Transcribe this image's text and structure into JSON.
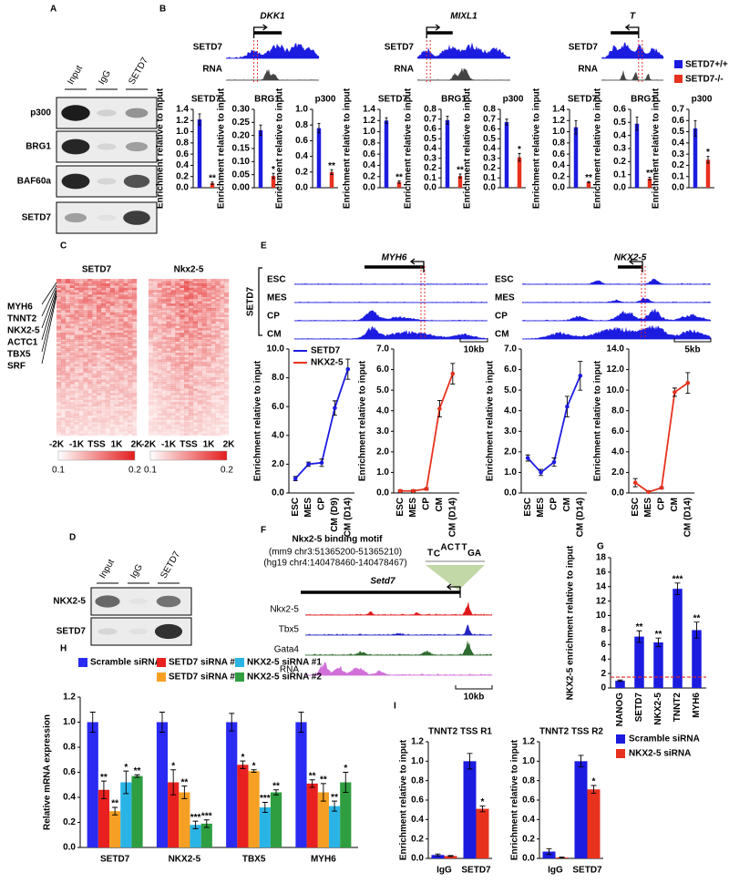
{
  "panel_labels": [
    "A",
    "B",
    "C",
    "D",
    "E",
    "F",
    "G",
    "H",
    "I"
  ],
  "panel_a": {
    "lanes": [
      "Input",
      "IgG",
      "SETD7"
    ],
    "rows": [
      "p300",
      "BRG1",
      "BAF60a",
      "SETD7"
    ]
  },
  "panel_b": {
    "genes": [
      "DKK1",
      "MIXL1",
      "T"
    ],
    "track_labels": [
      "SETD7",
      "RNA"
    ],
    "legend": [
      {
        "name": "SETD7+/+",
        "color": "#1c1ce0"
      },
      {
        "name": "SETD7-/-",
        "color": "#e8321e"
      }
    ],
    "charts": [
      {
        "type": "bar",
        "title": "SETD7",
        "y_label": "Enrichment relative to input",
        "values": [
          1.22,
          0.08
        ],
        "errors": [
          0.1,
          0.02
        ],
        "significance": [
          null,
          "**"
        ],
        "ylim": [
          0,
          1.4
        ],
        "yticks": [
          {
            "value": 0,
            "label": "0.0"
          },
          0.2,
          0.4,
          0.6,
          0.8,
          {
            "value": 1,
            "label": "1.0"
          },
          1.2,
          1.4
        ]
      },
      {
        "type": "bar",
        "title": "BRG1",
        "y_label": "Enrichment relative to input",
        "values": [
          0.22,
          0.045
        ],
        "errors": [
          0.02,
          0.01
        ],
        "significance": [
          null,
          "*"
        ],
        "ylim": [
          0,
          0.3
        ],
        "yticks": [
          {
            "value": 0,
            "label": "0.00"
          },
          0.05,
          {
            "value": 0.1,
            "label": "0.10"
          },
          0.15,
          {
            "value": 0.2,
            "label": "0.20"
          },
          0.25,
          {
            "value": 0.3,
            "label": "0.30"
          }
        ]
      },
      {
        "type": "bar",
        "title": "p300",
        "y_label": "Enrichment relative to input",
        "values": [
          0.76,
          0.2
        ],
        "errors": [
          0.06,
          0.03
        ],
        "significance": [
          null,
          "**"
        ],
        "ylim": [
          0,
          1
        ],
        "yticks": [
          {
            "value": 0,
            "label": "0.0"
          },
          0.2,
          0.4,
          0.6,
          0.8,
          {
            "value": 1,
            "label": "1.0"
          }
        ]
      },
      {
        "type": "bar",
        "title": "SETD7",
        "y_label": "Enrichment relative to input",
        "values": [
          1.2,
          0.1
        ],
        "errors": [
          0.05,
          0.02
        ],
        "significance": [
          null,
          "**"
        ],
        "ylim": [
          0,
          1.4
        ],
        "yticks": [
          {
            "value": 0,
            "label": "0.0"
          },
          0.2,
          0.4,
          0.6,
          0.8,
          {
            "value": 1,
            "label": "1.0"
          },
          1.2,
          1.4
        ]
      },
      {
        "type": "bar",
        "title": "BRG1",
        "y_label": "Enrichment relative to input",
        "values": [
          0.69,
          0.12
        ],
        "errors": [
          0.04,
          0.02
        ],
        "significance": [
          null,
          "**"
        ],
        "ylim": [
          0,
          0.8
        ],
        "yticks": [
          {
            "value": 0,
            "label": "0.0"
          },
          0.1,
          0.2,
          0.3,
          0.4,
          0.5,
          0.6,
          0.7,
          0.8
        ]
      },
      {
        "type": "bar",
        "title": "p300",
        "y_label": "Enrichment relative to input",
        "values": [
          0.67,
          0.31
        ],
        "errors": [
          0.03,
          0.04
        ],
        "significance": [
          null,
          "*"
        ],
        "ylim": [
          0,
          0.8
        ],
        "yticks": [
          {
            "value": 0,
            "label": "0.0"
          },
          0.1,
          0.2,
          0.3,
          0.4,
          0.5,
          0.6,
          0.7,
          0.8
        ]
      },
      {
        "type": "bar",
        "title": "SETD7",
        "y_label": "Enrichment relative to input",
        "values": [
          1.08,
          0.1
        ],
        "errors": [
          0.12,
          0.01
        ],
        "significance": [
          null,
          "**"
        ],
        "ylim": [
          0,
          1.4
        ],
        "yticks": [
          {
            "value": 0,
            "label": "0.0"
          },
          0.2,
          0.4,
          0.6,
          0.8,
          {
            "value": 1,
            "label": "1.0"
          },
          1.2,
          1.4
        ]
      },
      {
        "type": "bar",
        "title": "BRG1",
        "y_label": "Enrichment relative to input",
        "values": [
          0.49,
          0.07
        ],
        "errors": [
          0.05,
          0.01
        ],
        "significance": [
          null,
          "**"
        ],
        "ylim": [
          0,
          0.6
        ],
        "yticks": [
          {
            "value": 0,
            "label": "0.0"
          },
          0.1,
          0.2,
          0.3,
          0.4,
          0.5,
          0.6
        ]
      },
      {
        "type": "bar",
        "title": "p300",
        "y_label": "Enrichment relative to input",
        "values": [
          0.53,
          0.25
        ],
        "errors": [
          0.07,
          0.03
        ],
        "significance": [
          null,
          "*"
        ],
        "ylim": [
          0,
          0.7
        ],
        "yticks": [
          {
            "value": 0,
            "label": "0.0"
          },
          0.1,
          0.2,
          0.3,
          0.4,
          0.5,
          0.6,
          0.7
        ]
      }
    ]
  },
  "panel_c": {
    "titles": [
      "SETD7",
      "Nkx2-5"
    ],
    "genes": [
      "MYH6",
      "TNNT2",
      "NKX2-5",
      "ACTC1",
      "TBX5",
      "SRF"
    ],
    "x_ticks": [
      "-2K",
      "-1K",
      "TSS",
      "1K",
      "2K"
    ],
    "colorbar": [
      0.1,
      0.2
    ]
  },
  "panel_d": {
    "lanes": [
      "Input",
      "IgG",
      "SETD7"
    ],
    "rows": [
      "NKX2-5",
      "SETD7"
    ]
  },
  "panel_e": {
    "genes": [
      "MYH6",
      "NKX2-5"
    ],
    "side_label": "SETD7",
    "stages": [
      "ESC",
      "MES",
      "CP",
      "CM"
    ],
    "scale_bars": [
      "10kb",
      "5kb"
    ],
    "legend": [
      {
        "name": "SETD7",
        "color": "#1c1ce0"
      },
      {
        "name": "NKX2-5",
        "color": "#e8321e"
      }
    ],
    "charts": [
      {
        "type": "line",
        "y_label": "Enrichment relative to input",
        "color": "#1c1ce0",
        "categories": [
          "ESC",
          "MES",
          "CP",
          "CM (D9)",
          "CM (D14)"
        ],
        "values": [
          1.0,
          2.0,
          2.1,
          5.9,
          8.6
        ],
        "errors": [
          0.15,
          0.15,
          0.25,
          0.5,
          0.7
        ],
        "ylim": [
          0,
          10
        ],
        "yticks": [
          {
            "value": 0,
            "label": "0.0"
          },
          {
            "value": 2,
            "label": "2.0"
          },
          {
            "value": 4,
            "label": "4.0"
          },
          {
            "value": 6,
            "label": "6.0"
          },
          {
            "value": 8,
            "label": "8.0"
          },
          {
            "value": 10,
            "label": "10.0"
          }
        ]
      },
      {
        "type": "line",
        "y_label": "Enrichment relative to input",
        "color": "#e8321e",
        "categories": [
          "ESC",
          "MES",
          "CP",
          "CM",
          "CM (D14)"
        ],
        "values": [
          0.1,
          0.1,
          0.2,
          4.1,
          5.8
        ],
        "errors": [
          0.05,
          0.05,
          0.05,
          0.4,
          0.5
        ],
        "ylim": [
          0,
          7
        ],
        "yticks": [
          {
            "value": 0,
            "label": "0.0"
          },
          {
            "value": 1,
            "label": "1.0"
          },
          {
            "value": 2,
            "label": "2.0"
          },
          {
            "value": 3,
            "label": "3.0"
          },
          {
            "value": 4,
            "label": "4.0"
          },
          {
            "value": 5,
            "label": "5.0"
          },
          {
            "value": 6,
            "label": "6.0"
          },
          {
            "value": 7,
            "label": "7.0"
          }
        ]
      },
      {
        "type": "line",
        "y_label": "Enrichment relative to input",
        "color": "#1c1ce0",
        "categories": [
          "ESC",
          "MES",
          "CP",
          "CM",
          "CM (D14)"
        ],
        "values": [
          1.7,
          1.0,
          1.5,
          4.2,
          5.7
        ],
        "errors": [
          0.15,
          0.15,
          0.2,
          0.5,
          0.7
        ],
        "ylim": [
          0,
          7
        ],
        "yticks": [
          {
            "value": 0,
            "label": "0.0"
          },
          {
            "value": 1,
            "label": "1.0"
          },
          {
            "value": 2,
            "label": "2.0"
          },
          {
            "value": 3,
            "label": "3.0"
          },
          {
            "value": 4,
            "label": "4.0"
          },
          {
            "value": 5,
            "label": "5.0"
          },
          {
            "value": 6,
            "label": "6.0"
          },
          {
            "value": 7,
            "label": "7.0"
          }
        ]
      },
      {
        "type": "line",
        "y_label": "Enrichment relative to input",
        "color": "#e8321e",
        "categories": [
          "ESC",
          "MES",
          "CP",
          "CM",
          "CM (D14)"
        ],
        "values": [
          1.0,
          0.1,
          0.5,
          9.8,
          10.7
        ],
        "errors": [
          0.4,
          0.1,
          0.1,
          0.4,
          1.0
        ],
        "ylim": [
          0,
          14
        ],
        "yticks": [
          {
            "value": 0,
            "label": "0.0"
          },
          {
            "value": 2,
            "label": "2.0"
          },
          {
            "value": 4,
            "label": "4.0"
          },
          {
            "value": 6,
            "label": "6.0"
          },
          {
            "value": 8,
            "label": "8.0"
          },
          {
            "value": 10,
            "label": "10.0"
          },
          {
            "value": 12,
            "label": "12.0"
          },
          {
            "value": 14,
            "label": "14.0"
          }
        ]
      }
    ]
  },
  "panel_f": {
    "motif_title": "Nkx2-5 binding motif",
    "coords": [
      "(mm9 chr3:51365200-51365210)",
      "(hg19 chr4:140478460-140478467)"
    ],
    "motif_letters": [
      "T",
      "C",
      "A",
      "C",
      "T",
      "T",
      "G",
      "A"
    ],
    "gene": "Setd7",
    "tracks": [
      {
        "name": "Nkx2-5",
        "color": "#e01818"
      },
      {
        "name": "Tbx5",
        "color": "#2323c0"
      },
      {
        "name": "Gata4",
        "color": "#2e6b2e"
      },
      {
        "name": "RNA",
        "color": "#d070d8"
      }
    ],
    "scale_bar": "10kb"
  },
  "panel_g": {
    "type": "bar",
    "y_label": "NKX2-5 enrichment relative to input",
    "color": "#1c1ce0",
    "categories": [
      "NANOG",
      "SETD7",
      "NKX2-5",
      "TNNT2",
      "MYH6"
    ],
    "values": [
      1.0,
      7.1,
      6.3,
      13.7,
      8.0
    ],
    "errors": [
      0.1,
      0.8,
      0.6,
      0.8,
      1.1
    ],
    "significance": [
      null,
      "**",
      "**",
      "***",
      "**"
    ],
    "reference_line": 1.5,
    "ylim": [
      0,
      18
    ],
    "yticks": [
      0,
      2,
      4,
      6,
      8,
      10,
      12,
      14,
      16,
      18
    ]
  },
  "panel_h": {
    "type": "bar",
    "y_label": "Relative mRNA expression",
    "categories": [
      "SETD7",
      "NKX2-5",
      "TBX5",
      "MYH6"
    ],
    "ylim": [
      0,
      1.2
    ],
    "yticks": [
      {
        "value": 0,
        "label": "0.0"
      },
      0.2,
      0.4,
      0.6,
      0.8,
      {
        "value": 1,
        "label": "1.0"
      },
      1.2
    ],
    "series": [
      {
        "name": "Scramble siRNA",
        "color": "#2a2af2",
        "values": [
          1.0,
          1.0,
          1.0,
          1.0
        ],
        "errors": [
          0.08,
          0.08,
          0.07,
          0.08
        ],
        "significance": [
          null,
          null,
          null,
          null
        ]
      },
      {
        "name": "SETD7 siRNA #1",
        "color": "#e82020",
        "values": [
          0.46,
          0.52,
          0.66,
          0.51
        ],
        "errors": [
          0.07,
          0.1,
          0.03,
          0.03
        ],
        "significance": [
          "**",
          "*",
          "*",
          "**"
        ]
      },
      {
        "name": "SETD7 siRNA #2",
        "color": "#f5a024",
        "values": [
          0.29,
          0.44,
          0.61,
          0.44
        ],
        "errors": [
          0.03,
          0.05,
          0.01,
          0.07
        ],
        "significance": [
          "**",
          "**",
          "*",
          "**"
        ]
      },
      {
        "name": "NKX2-5 siRNA #1",
        "color": "#2ab4e6",
        "values": [
          0.52,
          0.18,
          0.32,
          0.33
        ],
        "errors": [
          0.09,
          0.03,
          0.04,
          0.04
        ],
        "significance": [
          "*",
          "***",
          "***",
          "**"
        ]
      },
      {
        "name": "NKX2-5 siRNA #2",
        "color": "#2f9e40",
        "values": [
          0.57,
          0.19,
          0.44,
          0.52
        ],
        "errors": [
          0.01,
          0.03,
          0.02,
          0.08
        ],
        "significance": [
          "**",
          "***",
          "**",
          "*"
        ]
      }
    ]
  },
  "panel_i": {
    "legend": [
      {
        "name": "Scramble siRNA",
        "color": "#1c1ce0"
      },
      {
        "name": "NKX2-5 siRNA",
        "color": "#e8321e"
      }
    ],
    "charts": [
      {
        "type": "bar",
        "title": "TNNT2 TSS R1",
        "y_label": "Enrichment relative to input",
        "categories": [
          "IgG",
          "SETD7"
        ],
        "ylim": [
          0,
          1.2
        ],
        "yticks": [
          {
            "value": 0,
            "label": "0.0"
          },
          0.2,
          0.4,
          0.6,
          0.8,
          {
            "value": 1,
            "label": "1.0"
          },
          1.2
        ],
        "series": [
          {
            "values": [
              0.035,
              1.0
            ],
            "errors": [
              0.01,
              0.08
            ],
            "significance": [
              null,
              null
            ]
          },
          {
            "values": [
              0.025,
              0.51
            ],
            "errors": [
              0.005,
              0.03
            ],
            "significance": [
              null,
              "*"
            ]
          }
        ]
      },
      {
        "type": "bar",
        "title": "TNNT2 TSS R2",
        "y_label": "Enrichment relative to input",
        "categories": [
          "IgG",
          "SETD7"
        ],
        "ylim": [
          0,
          1.2
        ],
        "yticks": [
          {
            "value": 0,
            "label": "0.0"
          },
          0.2,
          0.4,
          0.6,
          0.8,
          {
            "value": 1,
            "label": "1.0"
          },
          1.2
        ],
        "series": [
          {
            "values": [
              0.07,
              1.0
            ],
            "errors": [
              0.03,
              0.06
            ],
            "significance": [
              null,
              null
            ]
          },
          {
            "values": [
              0.01,
              0.71
            ],
            "errors": [
              0.005,
              0.04
            ],
            "significance": [
              null,
              "*"
            ]
          }
        ]
      }
    ]
  }
}
